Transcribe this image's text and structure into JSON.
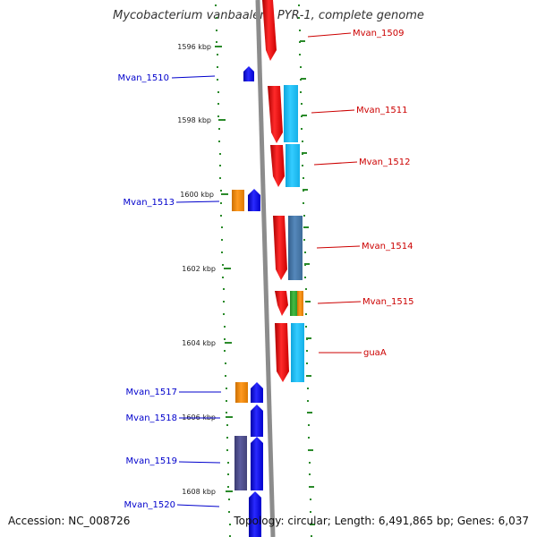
{
  "title": "Mycobacterium vanbaalenii PYR-1, complete genome",
  "footer": {
    "accession": "Accession: NC_008726",
    "info": "Topology: circular; Length: 6,491,865 bp; Genes: 6,037"
  },
  "ruler_ticks": [
    "1596 kbp",
    "1598 kbp",
    "1600 kbp",
    "1602 kbp",
    "1604 kbp",
    "1606 kbp",
    "1608 kbp"
  ],
  "genes": {
    "left": [
      "Mvan_1510",
      "Mvan_1513",
      "Mvan_1517",
      "Mvan_1518",
      "Mvan_1519",
      "Mvan_1520"
    ],
    "right": [
      "Mvan_1509",
      "Mvan_1511",
      "Mvan_1512",
      "Mvan_1514",
      "Mvan_1515",
      "guaA"
    ]
  },
  "colors": {
    "forward_label": "#cc0000",
    "reverse_label": "#0000cc",
    "forward_gene": "#ee0000",
    "reverse_gene": "#0000ee",
    "backbone": "#8c8c8c",
    "tick_green": "#2a8a2a",
    "cog_light_blue": "#22bbee",
    "cog_steel_blue": "#4477aa",
    "cog_orange": "#ee8800",
    "cog_green": "#33aa33",
    "cog_purple": "#4a4a8a"
  }
}
